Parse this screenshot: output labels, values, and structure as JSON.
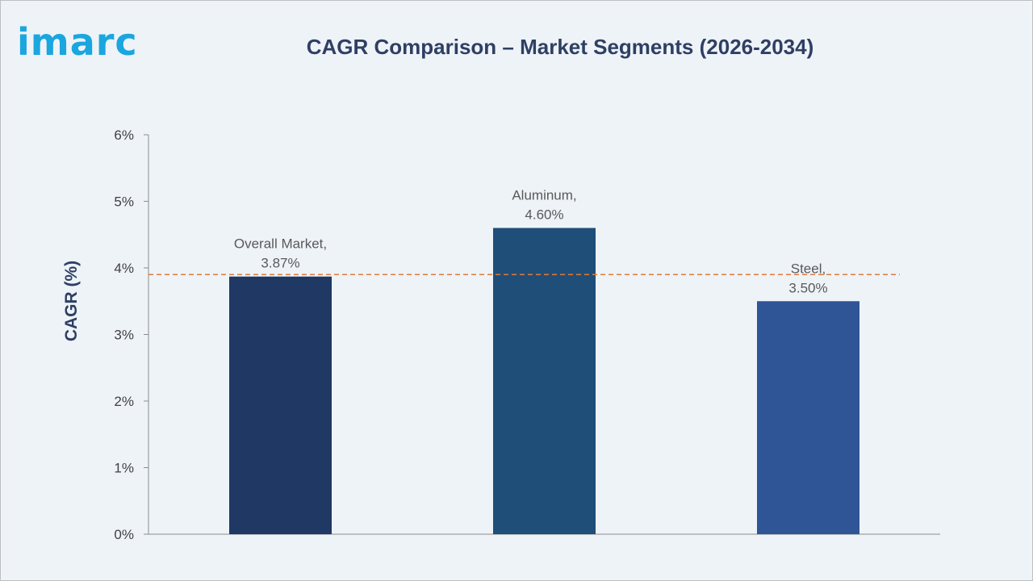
{
  "brand": {
    "logo_text": "imarc",
    "logo_color": "#1aa6de"
  },
  "chart_data": {
    "type": "bar",
    "title": "CAGR Comparison – Market Segments (2026-2034)",
    "ylabel": "CAGR (%)",
    "xlabel": "",
    "categories": [
      "Overall Market",
      "Aluminum",
      "Steel"
    ],
    "values": [
      3.87,
      4.6,
      3.5
    ],
    "data_labels": [
      [
        "Overall Market,",
        "3.87%"
      ],
      [
        "Aluminum,",
        "4.60%"
      ],
      [
        "Steel,",
        "3.50%"
      ]
    ],
    "bar_colors": [
      "#1f3864",
      "#1f4e79",
      "#2f5597"
    ],
    "ylim": [
      0,
      6
    ],
    "yticks": [
      0,
      1,
      2,
      3,
      4,
      5,
      6
    ],
    "ytick_labels": [
      "0%",
      "1%",
      "2%",
      "3%",
      "4%",
      "5%",
      "6%"
    ],
    "reference_line": {
      "value": 3.9,
      "style": "dashed",
      "color": "#e07b39"
    },
    "grid": false,
    "legend": "none"
  }
}
